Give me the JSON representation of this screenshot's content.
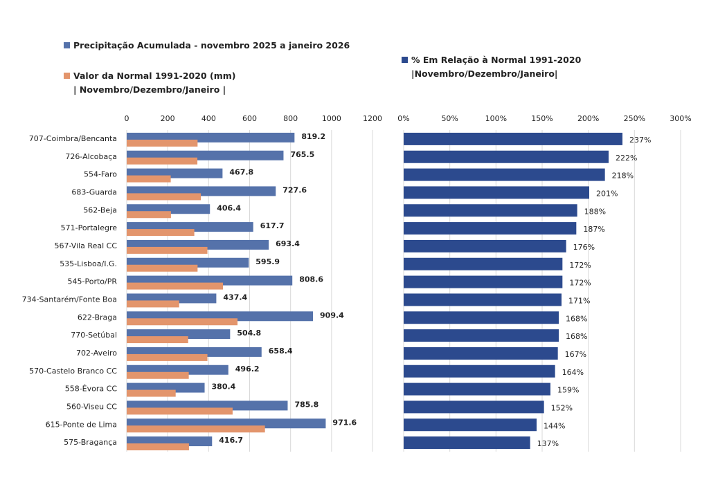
{
  "chart_data": [
    {
      "type": "bar",
      "orientation": "horizontal",
      "categories": [
        "707-Coimbra/Bencanta",
        "726-Alcobaça",
        "554-Faro",
        "683-Guarda",
        "562-Beja",
        "571-Portalegre",
        "567-Vila Real CC",
        "535-Lisboa/I.G.",
        "545-Porto/PR",
        "734-Santarém/Fonte Boa",
        "622-Braga",
        "770-Setúbal",
        "702-Aveiro",
        "570-Castelo Branco CC",
        "558-Évora CC",
        "560-Viseu CC",
        "615-Ponte de Lima",
        "575-Bragança"
      ],
      "series": [
        {
          "name": "Precipitação Acumulada - novembro 2025 a janeiro 2026",
          "color": "#5572aa",
          "data_labels": true,
          "values": [
            819.2,
            765.5,
            467.8,
            727.6,
            406.4,
            617.7,
            693.4,
            595.9,
            808.6,
            437.4,
            909.4,
            504.8,
            658.4,
            496.2,
            380.4,
            785.8,
            971.6,
            416.7
          ]
        },
        {
          "name": "Valor da Normal 1991-2020 (mm)\n| Novembro/Dezembro/Janeiro |",
          "color": "#e3956c",
          "values": [
            346,
            345,
            215,
            362,
            216,
            330,
            394,
            346,
            470,
            256,
            541,
            300,
            394,
            303,
            239,
            517,
            675,
            304
          ]
        }
      ],
      "xlim": [
        0,
        1200
      ],
      "xticks": [
        0,
        200,
        400,
        600,
        800,
        1000,
        1200
      ],
      "grid": true
    },
    {
      "type": "bar",
      "orientation": "horizontal",
      "series": [
        {
          "name": "% Em Relação à Normal 1991-2020\n|Novembro/Dezembro/Janeiro|",
          "color": "#2c4a8e",
          "data_labels": true,
          "values": [
            237,
            222,
            218,
            201,
            188,
            187,
            176,
            172,
            172,
            171,
            168,
            168,
            167,
            164,
            159,
            152,
            144,
            137
          ],
          "value_labels": [
            "237%",
            "222%",
            "218%",
            "201%",
            "188%",
            "187%",
            "176%",
            "172%",
            "172%",
            "171%",
            "168%",
            "168%",
            "167%",
            "164%",
            "159%",
            "152%",
            "144%",
            "137%"
          ]
        }
      ],
      "xlim": [
        0,
        300
      ],
      "xticks": [
        {
          "value": 0,
          "label": "0%"
        },
        {
          "value": 50,
          "label": "50%"
        },
        {
          "value": 100,
          "label": "100%"
        },
        {
          "value": 150,
          "label": "150%"
        },
        {
          "value": 200,
          "label": "200%"
        },
        {
          "value": 250,
          "label": "250%"
        },
        {
          "value": 300,
          "label": "300%"
        }
      ],
      "grid": true
    }
  ]
}
